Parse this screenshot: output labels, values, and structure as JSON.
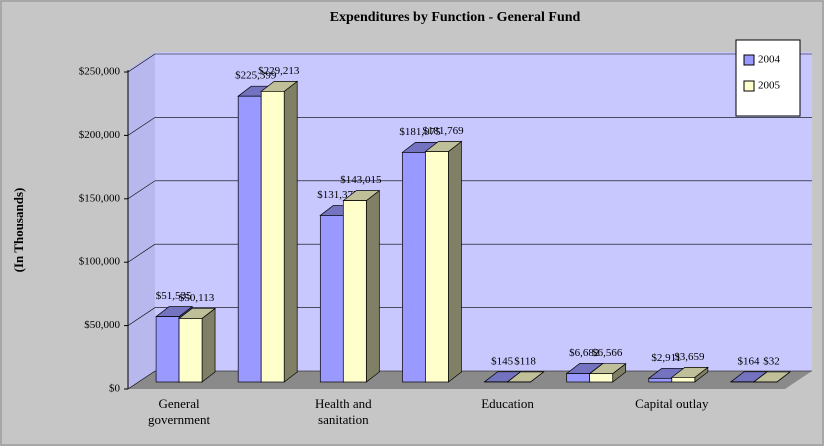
{
  "chart_data": {
    "type": "bar3d",
    "title": "Expenditures by Function - General Fund",
    "y_label": "(In Thousands)",
    "categories": [
      "General government",
      null,
      "Health and sanitation",
      null,
      "Education",
      null,
      "Capital outlay",
      null
    ],
    "series": [
      {
        "name": "2004",
        "color": "#9999ff",
        "values": [
          51535,
          225399,
          131377,
          181075,
          145,
          6682,
          2911,
          164
        ],
        "value_labels": [
          "$51,535",
          "$225,399",
          "$131,377",
          "$181,075",
          "$145",
          "$6,682",
          "$2,911",
          "$164"
        ]
      },
      {
        "name": "2005",
        "color": "#ffffcc",
        "values": [
          50113,
          229213,
          143015,
          181769,
          118,
          6566,
          3659,
          32
        ],
        "value_labels": [
          "$50,113",
          "$229,213",
          "$143,015",
          "$181,769",
          "$118",
          "$6,566",
          "$3,659",
          "$32"
        ]
      }
    ],
    "ylim": [
      0,
      250000
    ],
    "yticks": [
      {
        "value": 0,
        "label": "$0"
      },
      {
        "value": 50000,
        "label": "$50,000"
      },
      {
        "value": 100000,
        "label": "$100,000"
      },
      {
        "value": 150000,
        "label": "$150,000"
      },
      {
        "value": 200000,
        "label": "$200,000"
      },
      {
        "value": 250000,
        "label": "$250,000"
      }
    ],
    "grid": true,
    "legend": "top-right"
  }
}
